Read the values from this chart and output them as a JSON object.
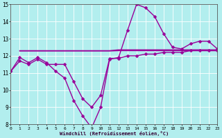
{
  "background_color": "#b2eeee",
  "line_color": "#990099",
  "grid_color": "#ffffff",
  "xlabel": "Windchill (Refroidissement éolien,°C)",
  "ylim": [
    8,
    15
  ],
  "xlim": [
    0,
    23
  ],
  "yticks": [
    8,
    9,
    10,
    11,
    12,
    13,
    14,
    15
  ],
  "xticks": [
    0,
    1,
    2,
    3,
    4,
    5,
    6,
    7,
    8,
    9,
    10,
    11,
    12,
    13,
    14,
    15,
    16,
    17,
    18,
    19,
    20,
    21,
    22,
    23
  ],
  "series": [
    {
      "x": [
        0,
        1,
        2,
        3,
        4,
        5,
        6,
        7,
        8,
        9,
        10,
        11,
        12,
        13,
        14,
        15,
        16,
        17,
        18,
        19,
        20,
        21,
        22,
        23
      ],
      "y": [
        11.1,
        11.9,
        11.6,
        11.9,
        11.6,
        11.1,
        10.7,
        9.4,
        8.5,
        7.8,
        9.0,
        11.8,
        11.9,
        13.5,
        15.0,
        14.8,
        14.3,
        13.3,
        12.5,
        12.4,
        12.7,
        12.85,
        12.85,
        12.4
      ],
      "has_markers": true
    },
    {
      "x": [
        1,
        2,
        3,
        4,
        5,
        6,
        7,
        8,
        9,
        10,
        11,
        12,
        13,
        14,
        15,
        16,
        17,
        18,
        19,
        20,
        21,
        22,
        23
      ],
      "y": [
        12.3,
        12.3,
        12.3,
        12.3,
        12.3,
        12.3,
        12.3,
        12.3,
        12.3,
        12.3,
        12.3,
        12.35,
        12.35,
        12.35,
        12.35,
        12.35,
        12.35,
        12.35,
        12.35,
        12.35,
        12.35,
        12.35,
        12.35
      ],
      "has_markers": false
    },
    {
      "x": [
        1,
        2,
        3,
        4,
        5,
        6,
        7,
        8,
        9,
        10,
        11,
        12,
        13,
        14,
        15,
        16,
        17,
        18,
        19,
        20,
        21,
        22,
        23
      ],
      "y": [
        12.28,
        12.28,
        12.28,
        12.28,
        12.28,
        12.28,
        12.28,
        12.28,
        12.28,
        12.28,
        12.28,
        12.3,
        12.3,
        12.3,
        12.3,
        12.3,
        12.3,
        12.3,
        12.3,
        12.3,
        12.3,
        12.3,
        12.3
      ],
      "has_markers": false
    },
    {
      "x": [
        0,
        1,
        2,
        3,
        4,
        5,
        6,
        7,
        8,
        9,
        10,
        11,
        12,
        13,
        14,
        15,
        16,
        17,
        18,
        19,
        20,
        21,
        22,
        23
      ],
      "y": [
        11.1,
        11.7,
        11.5,
        11.8,
        11.5,
        11.5,
        11.5,
        10.5,
        9.5,
        9.0,
        9.7,
        11.85,
        11.85,
        12.0,
        12.0,
        12.1,
        12.1,
        12.2,
        12.2,
        12.2,
        12.3,
        12.3,
        12.3,
        12.3
      ],
      "has_markers": true
    }
  ],
  "marker_size": 2.5,
  "line_width": 1.0
}
